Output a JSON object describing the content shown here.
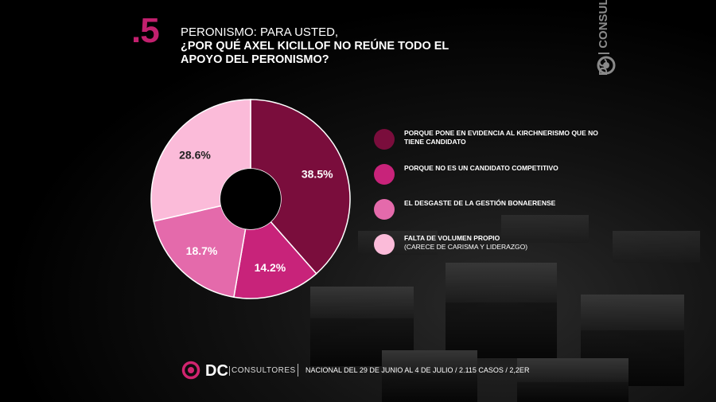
{
  "slide": {
    "number": ".5",
    "pretitle": "PERONISMO: PARA USTED,",
    "title": "¿POR QUÉ AXEL KICILLOF NO REÚNE TODO EL APOYO DEL PERONISMO?"
  },
  "side_brand": {
    "text": "DC | CONSULTORES"
  },
  "footer": {
    "brand": "DC",
    "brand_sub": "CONSULTORES",
    "info": "NACIONAL DEL 29 DE JUNIO AL 4 DE JULIO / 2.115 CASOS / 2,2ER"
  },
  "chart_data": {
    "type": "pie",
    "donut": true,
    "slices": [
      {
        "label": "PORQUE PONE EN EVIDENCIA AL KIRCHNERISMO QUE NO TIENE CANDIDATO",
        "value": 38.5,
        "display": "38.5%",
        "color": "#7a0d3c"
      },
      {
        "label": "PORQUE NO ES UN CANDIDATO COMPETITIVO",
        "value": 14.2,
        "display": "14.2%",
        "color": "#c8237a"
      },
      {
        "label": "EL DESGASTE DE LA GESTIÓN BONAERENSE",
        "value": 18.7,
        "display": "18.7%",
        "color": "#e46aab"
      },
      {
        "label": "FALTA DE VOLUMEN PROPIO",
        "sublabel": "(CARECE DE CARISMA Y LIDERAZGO)",
        "value": 28.6,
        "display": "28.6%",
        "color": "#fbbbd9"
      }
    ]
  }
}
